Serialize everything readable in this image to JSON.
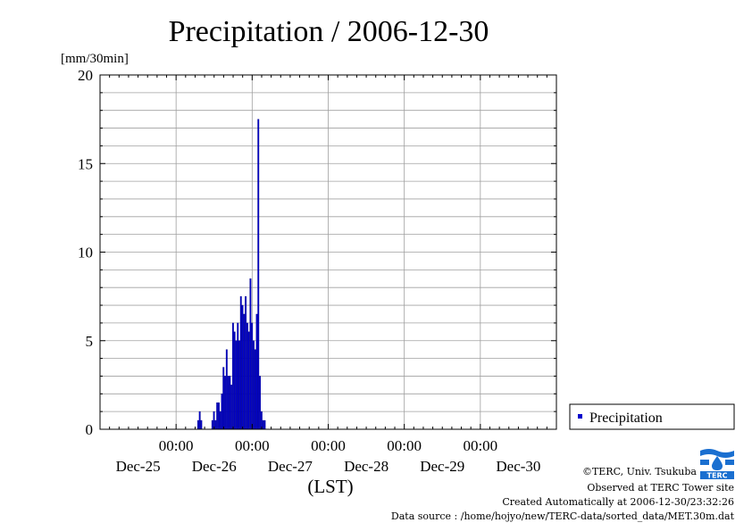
{
  "chart_data": {
    "type": "bar",
    "title": "Precipitation / 2006-12-30",
    "ylabel": "[mm/30min]",
    "xlabel": "(LST)",
    "ylim": [
      0,
      20
    ],
    "yticks": [
      0,
      5,
      10,
      15,
      20
    ],
    "yticks_labels": [
      "0",
      "5",
      "10",
      "15",
      "20"
    ],
    "x_interval": "30min",
    "xlim_days": [
      -1.0,
      5.0
    ],
    "x_day_ticks": [
      {
        "time": "00:00",
        "date": "Dec-25"
      },
      {
        "time": "00:00",
        "date": "Dec-26"
      },
      {
        "time": "00:00",
        "date": "Dec-27"
      },
      {
        "time": "00:00",
        "date": "Dec-28"
      },
      {
        "time": "00:00",
        "date": "Dec-29"
      },
      {
        "time": "00:00",
        "date": "Dec-30"
      }
    ],
    "grid": true,
    "legend_position": "right",
    "series": [
      {
        "name": "Precipitation",
        "color": "#0000cc",
        "points": [
          {
            "x": 0.292,
            "y": 0.5
          },
          {
            "x": 0.313,
            "y": 1.0
          },
          {
            "x": 0.333,
            "y": 0.5
          },
          {
            "x": 0.479,
            "y": 0.5
          },
          {
            "x": 0.5,
            "y": 1.0
          },
          {
            "x": 0.521,
            "y": 0.5
          },
          {
            "x": 0.542,
            "y": 1.5
          },
          {
            "x": 0.563,
            "y": 1.5
          },
          {
            "x": 0.583,
            "y": 1.0
          },
          {
            "x": 0.604,
            "y": 2.0
          },
          {
            "x": 0.625,
            "y": 3.5
          },
          {
            "x": 0.646,
            "y": 3.0
          },
          {
            "x": 0.667,
            "y": 4.5
          },
          {
            "x": 0.688,
            "y": 3.0
          },
          {
            "x": 0.708,
            "y": 3.0
          },
          {
            "x": 0.729,
            "y": 2.5
          },
          {
            "x": 0.75,
            "y": 6.0
          },
          {
            "x": 0.771,
            "y": 5.5
          },
          {
            "x": 0.792,
            "y": 5.0
          },
          {
            "x": 0.813,
            "y": 6.0
          },
          {
            "x": 0.833,
            "y": 5.0
          },
          {
            "x": 0.854,
            "y": 7.5
          },
          {
            "x": 0.875,
            "y": 7.0
          },
          {
            "x": 0.896,
            "y": 6.5
          },
          {
            "x": 0.917,
            "y": 7.5
          },
          {
            "x": 0.938,
            "y": 6.0
          },
          {
            "x": 0.958,
            "y": 5.5
          },
          {
            "x": 0.979,
            "y": 8.5
          },
          {
            "x": 1.0,
            "y": 6.0
          },
          {
            "x": 1.021,
            "y": 5.0
          },
          {
            "x": 1.042,
            "y": 4.5
          },
          {
            "x": 1.063,
            "y": 6.5
          },
          {
            "x": 1.083,
            "y": 17.5
          },
          {
            "x": 1.104,
            "y": 3.0
          },
          {
            "x": 1.125,
            "y": 1.0
          },
          {
            "x": 1.146,
            "y": 0.5
          },
          {
            "x": 1.167,
            "y": 0.5
          }
        ]
      }
    ]
  },
  "credits": {
    "copyright": "©TERC, Univ. Tsukuba",
    "observed": "Observed at TERC Tower site",
    "created": "Created Automatically at 2006-12-30/23:32:26",
    "source": "Data source : /home/hojyo/new/TERC-data/sorted_data/MET.30m.dat"
  },
  "logo": {
    "text": "TERC",
    "color": "#1a6fd0"
  }
}
